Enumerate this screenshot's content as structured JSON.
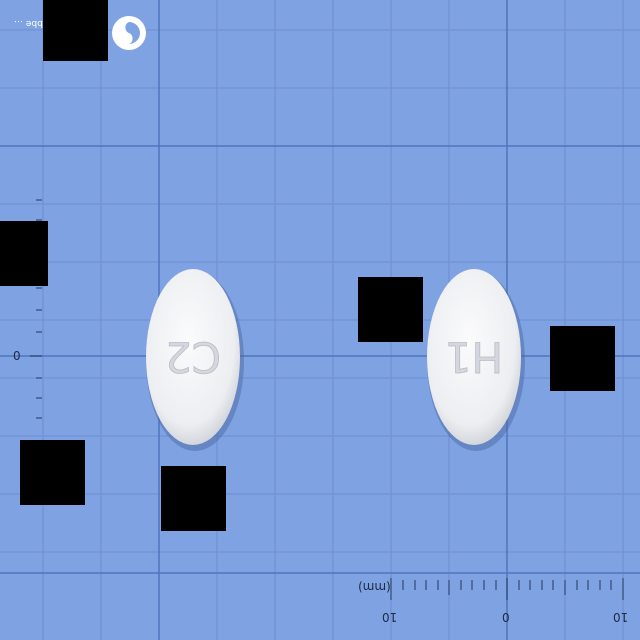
{
  "photo": {
    "subject": "two-white-oval-tablets",
    "background_color": "#7ea2e2",
    "grid_color": "#5b80c8",
    "tablet_color": "#f1f2f4"
  },
  "tablets": [
    {
      "imprint": "C2"
    },
    {
      "imprint": "H1"
    }
  ],
  "ruler": {
    "unit_label": "(mm)",
    "tick_labels": [
      "10",
      "0",
      "10"
    ],
    "left_axis_label": "0"
  },
  "brand": {
    "text": "Xbbe …"
  }
}
